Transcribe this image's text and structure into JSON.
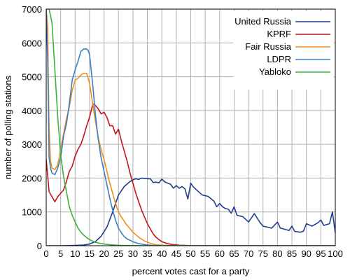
{
  "chart_data": {
    "type": "line",
    "title": "",
    "xlabel": "percent votes cast for a party",
    "ylabel": "number of polling stations",
    "xlim": [
      0,
      100
    ],
    "ylim": [
      0,
      7000
    ],
    "x_ticks": [
      0,
      5,
      10,
      15,
      20,
      25,
      30,
      35,
      40,
      45,
      50,
      55,
      60,
      65,
      70,
      75,
      80,
      85,
      90,
      95,
      100
    ],
    "y_ticks": [
      0,
      1000,
      2000,
      3000,
      4000,
      5000,
      6000,
      7000
    ],
    "grid": true,
    "legend_position": "top-right",
    "series": [
      {
        "name": "United Russia",
        "color": "#1f3f8f",
        "x": [
          0,
          5,
          10,
          13,
          15,
          17,
          19,
          21,
          23,
          25,
          27,
          29,
          30,
          31,
          32,
          33,
          34,
          35,
          36,
          37,
          38,
          39,
          40,
          41,
          42,
          43,
          44,
          45,
          46,
          47,
          48,
          49,
          50,
          51,
          52,
          54,
          56,
          58,
          59,
          60,
          61,
          62,
          63,
          64,
          65,
          66,
          68,
          70,
          72,
          74,
          75,
          76,
          78,
          80,
          81,
          82,
          84,
          85,
          86,
          88,
          89,
          90,
          92,
          94,
          95,
          96,
          98,
          99,
          100
        ],
        "values": [
          0,
          0,
          10,
          20,
          50,
          120,
          280,
          550,
          1000,
          1500,
          1750,
          1900,
          1950,
          1980,
          1960,
          2000,
          1990,
          1980,
          1980,
          1870,
          1880,
          1860,
          1970,
          1890,
          1850,
          1820,
          1700,
          1780,
          1700,
          1750,
          1680,
          1380,
          1850,
          1730,
          1650,
          1500,
          1460,
          1320,
          1150,
          1250,
          1150,
          1100,
          1080,
          960,
          1150,
          900,
          860,
          700,
          950,
          680,
          580,
          560,
          520,
          700,
          520,
          500,
          450,
          580,
          420,
          400,
          430,
          650,
          580,
          680,
          760,
          600,
          650,
          1000,
          380
        ]
      },
      {
        "name": "KPRF",
        "color": "#c0161c",
        "x": [
          0,
          1,
          2,
          3,
          4,
          5,
          6,
          7,
          8,
          9,
          10,
          11,
          12,
          13,
          14,
          15,
          16,
          16.5,
          17,
          18,
          19,
          20,
          21,
          22,
          23,
          24,
          25,
          26,
          27,
          28,
          29,
          30,
          31,
          32,
          33,
          34,
          35,
          36,
          37,
          38,
          39,
          40,
          42,
          44,
          46,
          50,
          55,
          100
        ],
        "values": [
          2550,
          1600,
          1450,
          1300,
          1450,
          1550,
          1650,
          1900,
          2200,
          2350,
          2650,
          2850,
          3000,
          3250,
          3550,
          3800,
          4150,
          4200,
          4150,
          4050,
          3900,
          3950,
          3800,
          3550,
          3550,
          3300,
          3450,
          3100,
          2800,
          2500,
          2150,
          1850,
          1550,
          1300,
          1050,
          850,
          650,
          500,
          350,
          250,
          180,
          120,
          60,
          30,
          15,
          5,
          0,
          0
        ]
      },
      {
        "name": "Fair Russia",
        "color": "#f28e1c",
        "x": [
          0,
          0.5,
          1,
          1.5,
          2,
          3,
          4,
          5,
          6,
          7,
          8,
          9,
          10,
          11,
          12,
          13,
          14,
          15,
          16,
          17,
          18,
          19,
          20,
          21,
          22,
          23,
          24,
          25,
          26,
          27,
          28,
          29,
          30,
          32,
          34,
          36,
          38,
          40,
          45,
          50,
          100
        ],
        "values": [
          7000,
          6500,
          3500,
          2500,
          2300,
          2250,
          2400,
          2850,
          3300,
          3750,
          4100,
          4600,
          4900,
          4950,
          5050,
          5100,
          5100,
          4800,
          4250,
          3700,
          3200,
          2850,
          2550,
          2200,
          1850,
          1550,
          1250,
          1000,
          850,
          720,
          600,
          500,
          400,
          250,
          140,
          70,
          30,
          15,
          3,
          0,
          0
        ]
      },
      {
        "name": "LDPR",
        "color": "#3c7fc1",
        "x": [
          0,
          0.5,
          1,
          1.5,
          2,
          3,
          4,
          5,
          6,
          7,
          8,
          9,
          10,
          11,
          12,
          13,
          14,
          14.5,
          15,
          16,
          17,
          18,
          19,
          20,
          21,
          22,
          23,
          24,
          25,
          26,
          27,
          28,
          30,
          32,
          35,
          38,
          40,
          45,
          100
        ],
        "values": [
          7000,
          5500,
          2600,
          2300,
          2150,
          2100,
          2300,
          2600,
          3250,
          3600,
          4200,
          4900,
          5200,
          5450,
          5750,
          5820,
          5820,
          5780,
          5650,
          4850,
          3900,
          3150,
          2600,
          2200,
          1800,
          1400,
          1050,
          750,
          520,
          380,
          270,
          200,
          120,
          60,
          20,
          5,
          0,
          0,
          0
        ]
      },
      {
        "name": "Yabloko",
        "color": "#3cb23c",
        "x": [
          0,
          1,
          2,
          3,
          4,
          5,
          6,
          7,
          8,
          9,
          10,
          11,
          12,
          13,
          14,
          15,
          16,
          17,
          18,
          20,
          22,
          24,
          26,
          28,
          30,
          35,
          100
        ],
        "values": [
          7000,
          7000,
          6600,
          5200,
          3800,
          2700,
          2050,
          1600,
          1150,
          900,
          700,
          520,
          400,
          310,
          240,
          180,
          140,
          105,
          80,
          50,
          30,
          18,
          10,
          6,
          3,
          0,
          0
        ]
      }
    ]
  }
}
